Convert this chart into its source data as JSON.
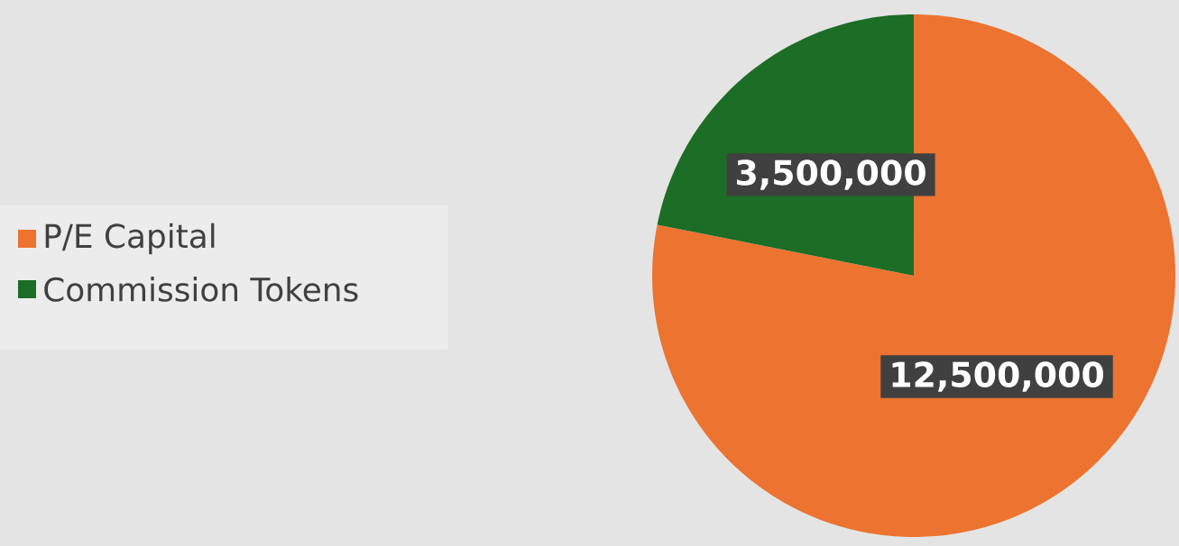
{
  "chart_data": {
    "type": "pie",
    "categories": [
      "P/E Capital",
      "Commission Tokens"
    ],
    "values": [
      12500000,
      3500000
    ],
    "value_labels": [
      "12,500,000",
      "3,500,000"
    ],
    "colors": [
      "#ec7330",
      "#1c6d25"
    ],
    "legend": "left"
  }
}
